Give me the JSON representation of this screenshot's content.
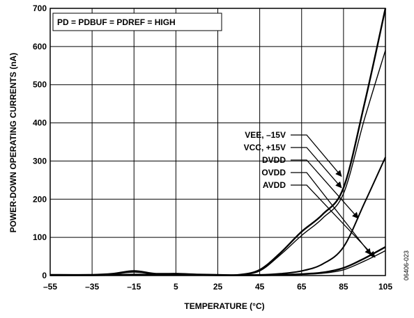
{
  "chart_data": {
    "type": "line",
    "xlabel": "TEMPERATURE (°C)",
    "ylabel": "POWER-DOWN OPERATING CURRENTS (nA)",
    "xlim": [
      -55,
      105
    ],
    "ylim": [
      0,
      700
    ],
    "x_ticks": [
      -55,
      -35,
      -15,
      5,
      25,
      45,
      65,
      85,
      105
    ],
    "x_tick_labels": [
      "–55",
      "–35",
      "–15",
      "5",
      "25",
      "45",
      "65",
      "85",
      "105"
    ],
    "y_ticks": [
      0,
      100,
      200,
      300,
      400,
      500,
      600,
      700
    ],
    "y_tick_labels": [
      "0",
      "100",
      "200",
      "300",
      "400",
      "500",
      "600",
      "700"
    ],
    "grid": true,
    "condition_label": "PD = PDBUF = PDREF = HIGH",
    "series": [
      {
        "name": "VEE, –15V",
        "x": [
          -55,
          -35,
          -25,
          -15,
          -5,
          5,
          15,
          25,
          35,
          45,
          55,
          65,
          75,
          85,
          95,
          105
        ],
        "y": [
          2,
          2,
          5,
          12,
          5,
          5,
          3,
          2,
          2,
          15,
          60,
          115,
          160,
          230,
          450,
          700
        ]
      },
      {
        "name": "VCC, +15V",
        "x": [
          -55,
          -35,
          -25,
          -15,
          -5,
          5,
          15,
          25,
          35,
          45,
          55,
          65,
          75,
          85,
          95,
          105
        ],
        "y": [
          2,
          2,
          4,
          9,
          4,
          4,
          3,
          2,
          2,
          12,
          55,
          105,
          150,
          215,
          410,
          590
        ]
      },
      {
        "name": "DVDD",
        "x": [
          -55,
          -35,
          -15,
          5,
          25,
          45,
          55,
          65,
          75,
          85,
          95,
          105
        ],
        "y": [
          1,
          1,
          3,
          2,
          1,
          2,
          5,
          12,
          30,
          75,
          190,
          310
        ]
      },
      {
        "name": "OVDD",
        "x": [
          -55,
          -35,
          -15,
          5,
          25,
          45,
          55,
          65,
          75,
          85,
          95,
          105
        ],
        "y": [
          1,
          1,
          2,
          2,
          1,
          1,
          2,
          4,
          8,
          20,
          45,
          75
        ]
      },
      {
        "name": "AVDD",
        "x": [
          -55,
          -35,
          -15,
          5,
          25,
          45,
          55,
          65,
          75,
          85,
          95,
          105
        ],
        "y": [
          1,
          1,
          2,
          1,
          1,
          1,
          2,
          3,
          6,
          15,
          38,
          65
        ]
      }
    ],
    "arrows": [
      {
        "series": "VEE, –15V",
        "to": [
          84,
          260
        ]
      },
      {
        "series": "VCC, +15V",
        "to": [
          84,
          230
        ]
      },
      {
        "series": "DVDD",
        "to": [
          92,
          150
        ]
      },
      {
        "series": "OVDD",
        "to": [
          98,
          55
        ]
      },
      {
        "series": "AVDD",
        "to": [
          100,
          48
        ]
      }
    ]
  },
  "figure_code": "06406-023"
}
